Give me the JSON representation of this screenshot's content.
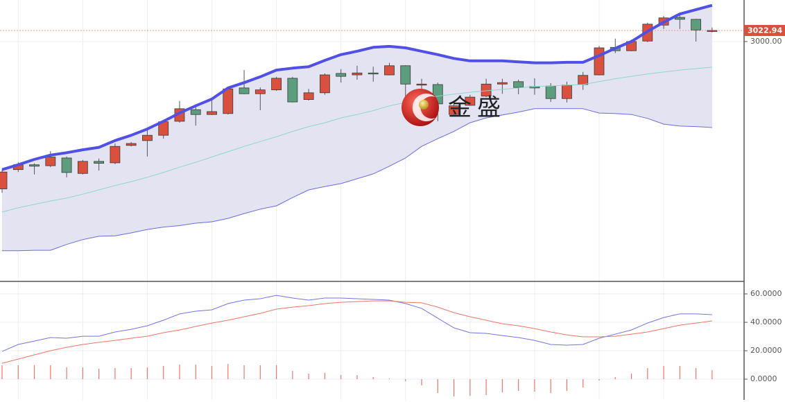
{
  "chart_data": [
    {
      "type": "candlestick",
      "open": [
        2695,
        2735,
        2745,
        2743,
        2759,
        2727,
        2752,
        2749,
        2785,
        2795,
        2806,
        2835,
        2859,
        2849,
        2851,
        2904,
        2892,
        2900,
        2924,
        2880,
        2894,
        2934,
        2931,
        2935,
        2931,
        2950,
        2911,
        2911,
        2849,
        2868,
        2887,
        2912,
        2917,
        2907,
        2908,
        2882,
        2911,
        2931,
        2988,
        2981,
        3001,
        3034,
        3050,
        3046,
        3021
      ],
      "high": [
        2735,
        2750,
        2748,
        2773,
        2762,
        2755,
        2758,
        2789,
        2792,
        2821,
        2836,
        2877,
        2867,
        2882,
        2905,
        2941,
        2905,
        2927,
        2927,
        2902,
        2934,
        2943,
        2950,
        2948,
        2956,
        2951,
        2923,
        2915,
        2872,
        2890,
        2923,
        2923,
        2921,
        2924,
        2914,
        2917,
        2937,
        2991,
        3006,
        3004,
        3039,
        3053,
        3060,
        3047,
        3029
      ],
      "low": [
        2687,
        2730,
        2725,
        2740,
        2719,
        2725,
        2733,
        2746,
        2783,
        2762,
        2799,
        2832,
        2826,
        2848,
        2849,
        2891,
        2858,
        2898,
        2874,
        2878,
        2890,
        2915,
        2921,
        2917,
        2930,
        2885,
        2900,
        2835,
        2848,
        2867,
        2885,
        2892,
        2891,
        2890,
        2875,
        2874,
        2900,
        2930,
        2976,
        2980,
        2999,
        3026,
        3026,
        3000,
        3019
      ],
      "close": [
        2730,
        2745,
        2742,
        2761,
        2729,
        2752,
        2748,
        2783,
        2789,
        2806,
        2834,
        2861,
        2849,
        2855,
        2902,
        2892,
        2900,
        2924,
        2875,
        2894,
        2931,
        2928,
        2935,
        2934,
        2950,
        2912,
        2912,
        2871,
        2867,
        2885,
        2912,
        2915,
        2905,
        2904,
        2882,
        2910,
        2930,
        2987,
        2981,
        3000,
        3036,
        3049,
        3046,
        3024,
        3022.94
      ],
      "up_color": "#d9503f",
      "down_color": "#5b9d7d",
      "lines": [
        {
          "color": "#5050e6",
          "width": 4,
          "values": [
            2735,
            2745,
            2756,
            2765,
            2770,
            2776,
            2781,
            2795,
            2806,
            2819,
            2835,
            2852,
            2867,
            2881,
            2904,
            2915,
            2927,
            2941,
            2945,
            2948,
            2961,
            2973,
            2980,
            2988,
            2990,
            2987,
            2980,
            2973,
            2965,
            2960,
            2960,
            2960,
            2958,
            2956,
            2956,
            2957,
            2957,
            2971,
            2986,
            3000,
            3021,
            3040,
            3057,
            3066,
            3075
          ]
        },
        {
          "color": "#8ed8c8",
          "width": 1,
          "values": [
            2647,
            2656,
            2663,
            2670,
            2676,
            2684,
            2693,
            2702,
            2710,
            2719,
            2729,
            2740,
            2750,
            2761,
            2772,
            2783,
            2793,
            2803,
            2814,
            2824,
            2832,
            2842,
            2849,
            2857,
            2867,
            2874,
            2881,
            2887,
            2891,
            2895,
            2898,
            2901,
            2904,
            2907,
            2908,
            2910,
            2911,
            2917,
            2923,
            2928,
            2933,
            2937,
            2941,
            2944,
            2947
          ]
        },
        {
          "color": "#6b6be2",
          "width": 1,
          "values": [
            2567,
            2567,
            2568,
            2568,
            2580,
            2590,
            2597,
            2598,
            2604,
            2611,
            2616,
            2619,
            2624,
            2627,
            2634,
            2644,
            2653,
            2660,
            2677,
            2693,
            2700,
            2706,
            2716,
            2726,
            2742,
            2759,
            2783,
            2799,
            2814,
            2832,
            2842,
            2848,
            2854,
            2861,
            2861,
            2861,
            2861,
            2852,
            2851,
            2849,
            2841,
            2829,
            2825,
            2824,
            2822
          ]
        }
      ],
      "band_fill": "#e3e3f1",
      "ylim": [
        2505,
        3086
      ],
      "yticks": [
        {
          "value": 3000,
          "label": "3000.00"
        }
      ],
      "last_price": {
        "value": 3022.94,
        "label": "3022.94"
      },
      "last_price_color": "#d9503f",
      "watermark": "金盛",
      "grid": true
    },
    {
      "type": "macd",
      "lines": [
        {
          "color": "#7474e4",
          "values": [
            19.5,
            24.4,
            26.8,
            29.3,
            28.8,
            30.2,
            30.2,
            33.2,
            35.1,
            37.6,
            41.5,
            45.9,
            47.8,
            48.8,
            53.2,
            55.6,
            56.6,
            59.0,
            57.1,
            55.6,
            57.1,
            57.1,
            56.6,
            56.1,
            55.6,
            53.2,
            49.8,
            42.9,
            36.1,
            32.7,
            32.2,
            30.7,
            29.3,
            27.3,
            24.4,
            23.9,
            24.4,
            28.8,
            31.7,
            34.6,
            39.5,
            43.4,
            45.9,
            45.9,
            45.4
          ]
        },
        {
          "color": "#ef7565",
          "values": [
            11.2,
            14.1,
            17.1,
            20.0,
            22.4,
            24.4,
            25.9,
            27.3,
            28.8,
            30.2,
            32.7,
            34.6,
            37.1,
            39.5,
            41.5,
            43.9,
            46.3,
            49.3,
            50.7,
            51.7,
            53.2,
            54.1,
            54.6,
            55.1,
            55.1,
            54.1,
            53.7,
            50.7,
            46.8,
            43.9,
            41.5,
            39.0,
            37.6,
            35.6,
            33.2,
            31.2,
            29.8,
            29.8,
            30.2,
            31.7,
            33.2,
            35.6,
            38.0,
            39.5,
            41.0
          ]
        }
      ],
      "bars": {
        "color": "#ef7565",
        "values": [
          9.8,
          9.8,
          9.8,
          9.8,
          8.3,
          8.3,
          7.3,
          7.8,
          7.8,
          8.3,
          9.3,
          10.2,
          10.2,
          9.3,
          10.7,
          9.8,
          9.8,
          9.8,
          5.9,
          3.9,
          4.4,
          2.9,
          2.9,
          1.5,
          0.5,
          -1.5,
          -4.4,
          -9.8,
          -12.2,
          -11.7,
          -11.2,
          -9.3,
          -8.3,
          -8.8,
          -9.8,
          -8.3,
          -5.9,
          -1,
          1.5,
          3.9,
          7.8,
          9.3,
          9.3,
          7.8,
          6.3
        ]
      },
      "ylim": [
        -14.6,
        68.3
      ],
      "yticks": [
        {
          "value": 60,
          "label": "60.0000"
        },
        {
          "value": 40,
          "label": "40.0000"
        },
        {
          "value": 20,
          "label": "20.0000"
        },
        {
          "value": 0,
          "label": "0.0000"
        }
      ],
      "grid": true
    }
  ]
}
